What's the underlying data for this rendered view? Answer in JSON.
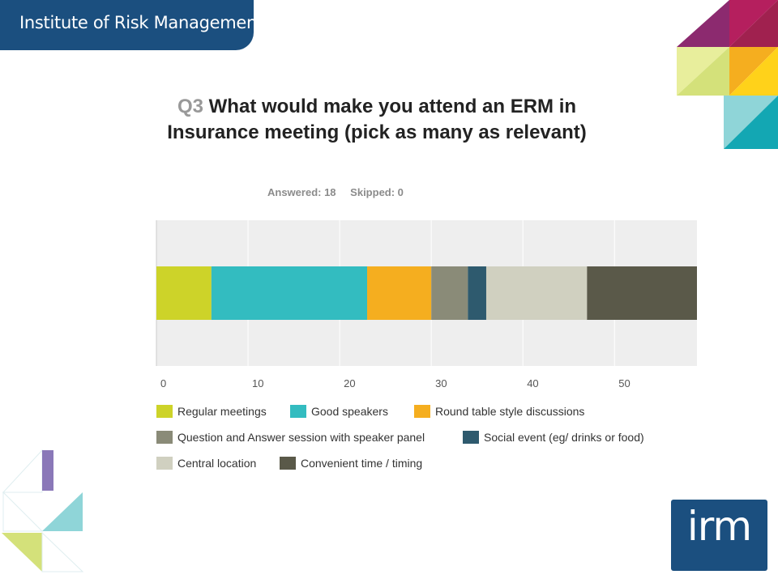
{
  "header": {
    "title": "Institute of Risk Management"
  },
  "question": {
    "number": "Q3",
    "text": "What would make you attend an ERM in Insurance meeting (pick as many as relevant)"
  },
  "stats": {
    "answered": "Answered: 18",
    "skipped": "Skipped: 0"
  },
  "logo": {
    "text": "irm"
  },
  "chart_data": {
    "type": "bar",
    "orientation": "horizontal-stacked",
    "categories": [
      ""
    ],
    "series": [
      {
        "name": "Regular meetings",
        "values": [
          6
        ],
        "color": "#cdd329"
      },
      {
        "name": "Good speakers",
        "values": [
          17
        ],
        "color": "#33bcc0"
      },
      {
        "name": "Round table style discussions",
        "values": [
          7
        ],
        "color": "#f5ae1f"
      },
      {
        "name": "Question and Answer session with speaker panel",
        "values": [
          4
        ],
        "color": "#8a8b78"
      },
      {
        "name": "Social event (eg/ drinks or food)",
        "values": [
          2
        ],
        "color": "#2e5a6e"
      },
      {
        "name": "Central location",
        "values": [
          11
        ],
        "color": "#d0d0c0"
      },
      {
        "name": "Convenient time / timing",
        "values": [
          12
        ],
        "color": "#5a5949"
      }
    ],
    "xticks": [
      0,
      10,
      20,
      30,
      40,
      50
    ],
    "xlim": [
      0,
      59
    ],
    "grid": true,
    "legend_position": "bottom",
    "title": "Q3 What would make you attend an ERM in Insurance meeting (pick as many as relevant)",
    "xlabel": "",
    "ylabel": ""
  }
}
